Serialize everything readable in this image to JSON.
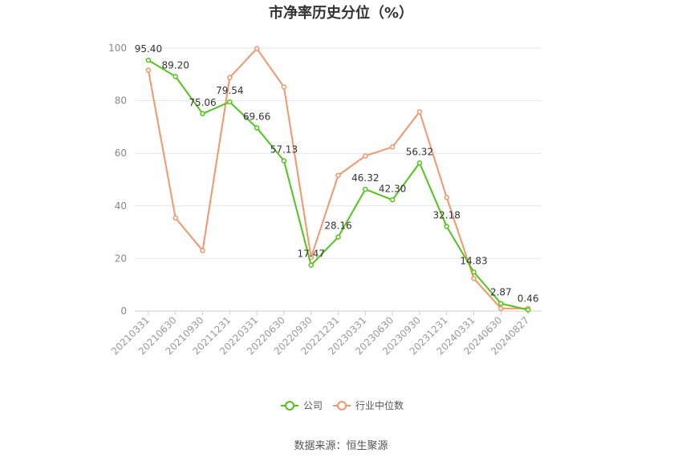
{
  "chart_data": {
    "type": "line",
    "title": "市净率历史分位（%）",
    "x": [
      "20210331",
      "20210630",
      "20210930",
      "20211231",
      "20220331",
      "20220630",
      "20220930",
      "20221231",
      "20230331",
      "20230630",
      "20230930",
      "20231231",
      "20240331",
      "20240630",
      "20240827"
    ],
    "ylim": [
      0,
      100
    ],
    "yticks": [
      0,
      20,
      40,
      60,
      80,
      100
    ],
    "grid": true,
    "legend_position": "bottom",
    "series": [
      {
        "name": "公司",
        "color": "#52c41a",
        "values": [
          95.4,
          89.2,
          75.06,
          79.54,
          69.66,
          57.13,
          17.47,
          28.16,
          46.32,
          42.3,
          56.32,
          32.18,
          14.83,
          2.87,
          0.46
        ],
        "labels": [
          "95.40",
          "89.20",
          "75.06",
          "79.54",
          "69.66",
          "57.13",
          "17.47",
          "28.16",
          "46.32",
          "42.30",
          "56.32",
          "32.18",
          "14.83",
          "2.87",
          "0.46"
        ]
      },
      {
        "name": "行业中位数",
        "color": "#f4956a",
        "values": [
          91.6,
          35.4,
          23.0,
          88.8,
          99.8,
          85.2,
          20.4,
          51.6,
          59.0,
          62.4,
          75.8,
          43.2,
          12.4,
          1.0,
          1.0
        ]
      }
    ]
  },
  "footer": {
    "source": "数据来源：恒生聚源"
  }
}
